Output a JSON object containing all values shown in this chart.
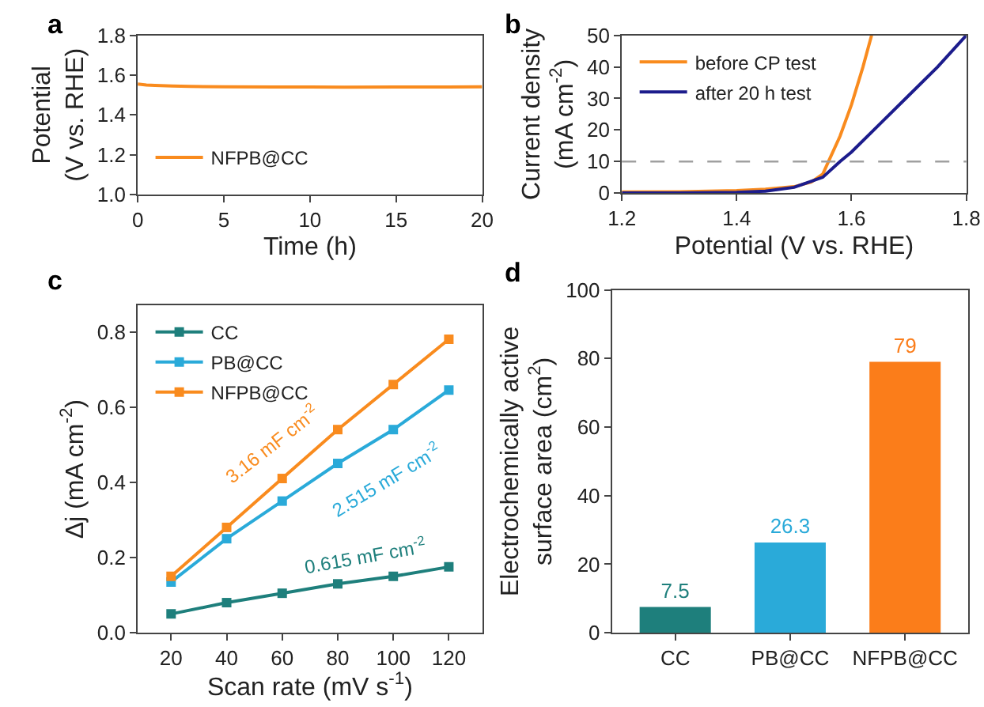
{
  "chart_data": [
    {
      "type": "line",
      "annotations": [
        "a"
      ],
      "xlabel": "Time (h)",
      "ylabel": "Potential\n(V vs. RHE)",
      "xlim": [
        0,
        20
      ],
      "xticks": [
        0,
        5,
        10,
        15,
        20
      ],
      "ylim": [
        1.0,
        1.8
      ],
      "yticks": [
        {
          "value": 1,
          "label": "1.0"
        },
        1.2,
        1.4,
        1.6,
        1.8
      ],
      "grid": false,
      "legend": "bottom left",
      "marker": "none",
      "series": [
        {
          "name": "NFPB@CC",
          "color": "#f98b1e",
          "x": [
            0,
            0.5,
            1,
            2,
            3,
            5,
            8,
            10,
            12,
            15,
            18,
            20
          ],
          "values": [
            1.555,
            1.55,
            1.548,
            1.545,
            1.543,
            1.541,
            1.54,
            1.54,
            1.539,
            1.54,
            1.54,
            1.541
          ]
        }
      ]
    },
    {
      "type": "line",
      "annotations": [
        "b"
      ],
      "xlabel": "Potential (V vs. RHE)",
      "ylabel": "Current density\n(mA cm$^{-2}$)",
      "xlim": [
        1.2,
        1.8
      ],
      "xticks": [
        1.2,
        1.4,
        1.6,
        1.8
      ],
      "ylim": [
        0,
        50
      ],
      "yticks": [
        0,
        10,
        20,
        30,
        40,
        50
      ],
      "grid": false,
      "legend": "top left",
      "marker": "none",
      "ref_lines": [
        {
          "axis": "y",
          "value": 10,
          "color": "#a0a0a0",
          "line_style": "dashed"
        }
      ],
      "series": [
        {
          "name": "before CP test",
          "color": "#f98b1e",
          "x": [
            1.2,
            1.3,
            1.4,
            1.45,
            1.5,
            1.53,
            1.55,
            1.56,
            1.58,
            1.6,
            1.62,
            1.635
          ],
          "values": [
            0.3,
            0.4,
            0.8,
            1.2,
            2,
            3.5,
            6,
            10,
            18,
            28,
            40,
            50
          ]
        },
        {
          "name": "after 20 h test",
          "color": "#1c1c8c",
          "x": [
            1.2,
            1.3,
            1.4,
            1.45,
            1.5,
            1.55,
            1.58,
            1.6,
            1.65,
            1.7,
            1.75,
            1.8
          ],
          "values": [
            0,
            0,
            0.2,
            0.6,
            1.8,
            5,
            10,
            13,
            22,
            31,
            40,
            50
          ]
        }
      ]
    },
    {
      "type": "line",
      "annotations": [
        "c",
        "3.16 mF cm$^{-2}$",
        "2.515 mF cm$^{-2}$",
        "0.615 mF cm$^{-2}$"
      ],
      "xlabel": "Scan rate (mV s$^{-1}$)",
      "ylabel": "Δj (mA cm$^{-2}$)",
      "x": [
        20,
        40,
        60,
        80,
        100,
        120
      ],
      "xlim": [
        8,
        132
      ],
      "xticks": [
        20,
        40,
        60,
        80,
        100,
        120
      ],
      "ylim": [
        0,
        0.87
      ],
      "yticks": [
        {
          "value": 0,
          "label": "0.0"
        },
        0.2,
        0.4,
        0.6,
        0.8
      ],
      "grid": false,
      "legend": "top left",
      "marker": "square",
      "series": [
        {
          "name": "CC",
          "color": "#1e7f7c",
          "values": [
            0.05,
            0.08,
            0.105,
            0.13,
            0.15,
            0.175
          ]
        },
        {
          "name": "PB@CC",
          "color": "#2aaad9",
          "values": [
            0.135,
            0.25,
            0.35,
            0.45,
            0.54,
            0.645
          ]
        },
        {
          "name": "NFPB@CC",
          "color": "#f98b1e",
          "values": [
            0.15,
            0.28,
            0.41,
            0.54,
            0.66,
            0.78
          ]
        }
      ]
    },
    {
      "type": "bar",
      "annotations": [
        "d"
      ],
      "ylabel": "Electrochemically active\nsurface area (cm$^{2}$)",
      "categories": [
        "CC",
        "PB@CC",
        "NFPB@CC"
      ],
      "values": [
        7.5,
        26.3,
        79
      ],
      "colors": [
        "#1e7f7c",
        "#2aaad9",
        "#fb7d1a"
      ],
      "ylim": [
        0,
        100
      ],
      "yticks": [
        0,
        20,
        40,
        60,
        80,
        100
      ],
      "grid": false,
      "data_labels": true
    }
  ]
}
